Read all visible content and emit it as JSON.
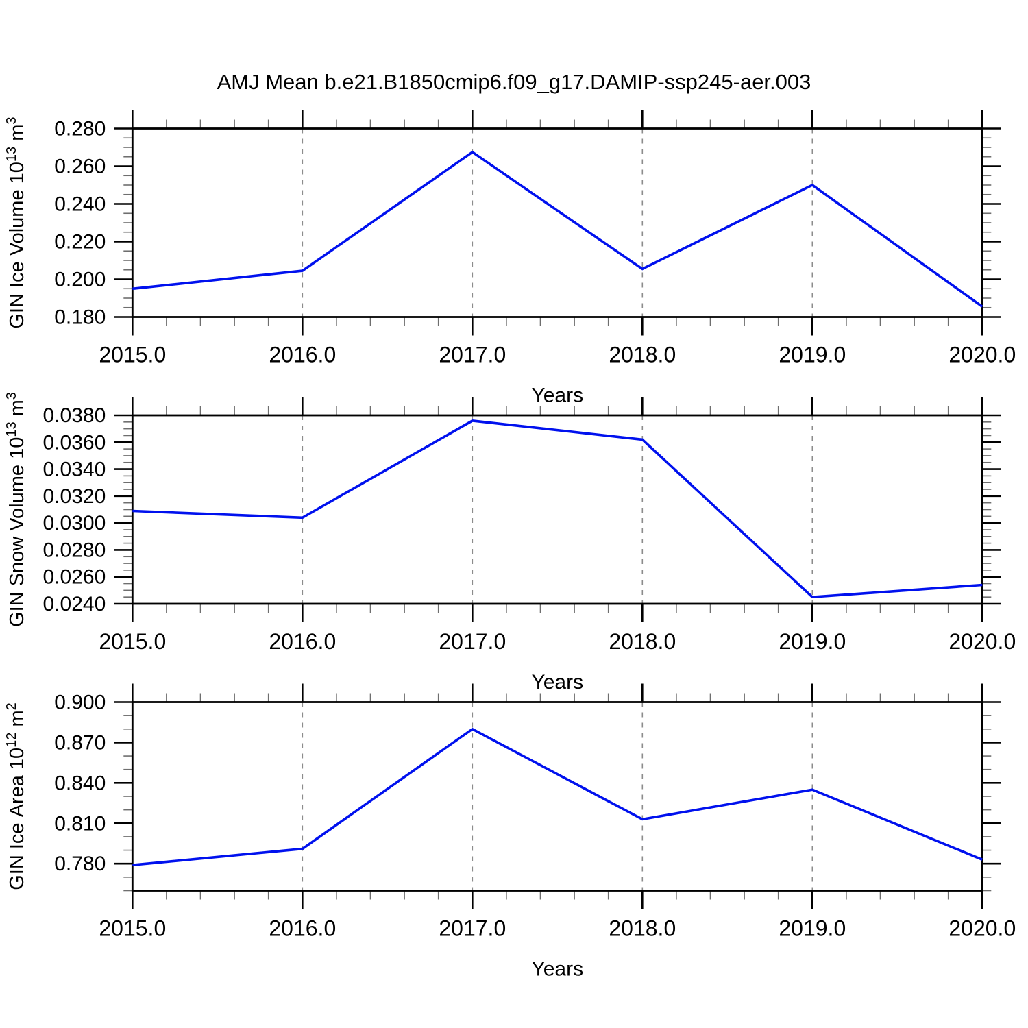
{
  "title": "AMJ Mean b.e21.B1850cmip6.f09_g17.DAMIP-ssp245-aer.003",
  "line_color": "#0011ee",
  "grid_color": "#8c8c8c",
  "frame_color": "#000000",
  "minor_tick_color": "#6e6e6e",
  "chart_data": [
    {
      "type": "line",
      "name": "gin-ice-volume",
      "ylabel_text": "GIN Ice Volume 10^13 m^3",
      "ylabel_parts": [
        {
          "t": "GIN Ice Volume 10"
        },
        {
          "t": "13",
          "sup": true
        },
        {
          "t": " m"
        },
        {
          "t": "3",
          "sup": true
        }
      ],
      "xlabel": "Years",
      "x": [
        2015,
        2016,
        2017,
        2018,
        2019,
        2020
      ],
      "values": [
        0.195,
        0.2045,
        0.2675,
        0.2055,
        0.25,
        0.1855
      ],
      "xlim": [
        2015,
        2020
      ],
      "ylim": [
        0.18,
        0.28
      ],
      "xtick_labels": [
        "2015.0",
        "2016.0",
        "2017.0",
        "2018.0",
        "2019.0",
        "2020.0"
      ],
      "xminor_step": 0.2,
      "ytick_values": [
        0.18,
        0.2,
        0.22,
        0.24,
        0.26,
        0.28
      ],
      "ytick_labels": [
        "0.180",
        "0.200",
        "0.220",
        "0.240",
        "0.260",
        "0.280"
      ],
      "yminor_step": 0.005,
      "grid_x": [
        2016,
        2017,
        2018,
        2019
      ],
      "grid_on": true,
      "legend": "none"
    },
    {
      "type": "line",
      "name": "gin-snow-volume",
      "ylabel_text": "GIN Snow Volume 10^13 m^3",
      "ylabel_parts": [
        {
          "t": "GIN Snow Volume 10"
        },
        {
          "t": "13",
          "sup": true
        },
        {
          "t": " m"
        },
        {
          "t": "3",
          "sup": true
        }
      ],
      "xlabel": "Years",
      "x": [
        2015,
        2016,
        2017,
        2018,
        2019,
        2020
      ],
      "values": [
        0.0309,
        0.0304,
        0.0376,
        0.0362,
        0.0245,
        0.0254
      ],
      "xlim": [
        2015,
        2020
      ],
      "ylim": [
        0.024,
        0.038
      ],
      "xtick_labels": [
        "2015.0",
        "2016.0",
        "2017.0",
        "2018.0",
        "2019.0",
        "2020.0"
      ],
      "xminor_step": 0.2,
      "ytick_values": [
        0.024,
        0.026,
        0.028,
        0.03,
        0.032,
        0.034,
        0.036,
        0.038
      ],
      "ytick_labels": [
        "0.0240",
        "0.0260",
        "0.0280",
        "0.0300",
        "0.0320",
        "0.0340",
        "0.0360",
        "0.0380"
      ],
      "yminor_step": 0.0005,
      "grid_x": [
        2016,
        2017,
        2018,
        2019
      ],
      "grid_on": true,
      "legend": "none"
    },
    {
      "type": "line",
      "name": "gin-ice-area",
      "ylabel_text": "GIN Ice Area 10^12 m^2",
      "ylabel_parts": [
        {
          "t": "GIN Ice Area 10"
        },
        {
          "t": "12",
          "sup": true
        },
        {
          "t": " m"
        },
        {
          "t": "2",
          "sup": true
        }
      ],
      "xlabel": "Years",
      "x": [
        2015,
        2016,
        2017,
        2018,
        2019,
        2020
      ],
      "values": [
        0.779,
        0.791,
        0.88,
        0.813,
        0.835,
        0.783
      ],
      "xlim": [
        2015,
        2020
      ],
      "ylim": [
        0.76,
        0.9
      ],
      "xtick_labels": [
        "2015.0",
        "2016.0",
        "2017.0",
        "2018.0",
        "2019.0",
        "2020.0"
      ],
      "xminor_step": 0.2,
      "ytick_values": [
        0.78,
        0.81,
        0.84,
        0.87,
        0.9
      ],
      "ytick_labels": [
        "0.780",
        "0.810",
        "0.840",
        "0.870",
        "0.900"
      ],
      "yminor_step": 0.01,
      "grid_x": [
        2016,
        2017,
        2018,
        2019
      ],
      "grid_on": true,
      "legend": "none"
    }
  ]
}
